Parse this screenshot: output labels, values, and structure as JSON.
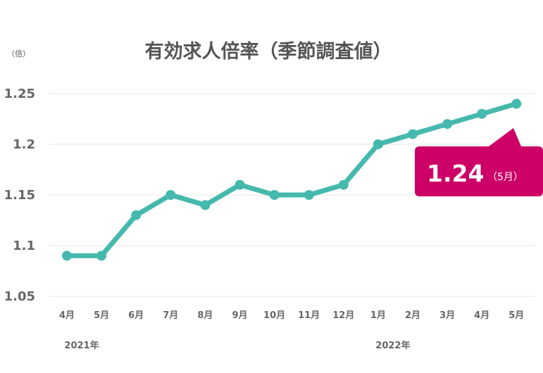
{
  "chart_data": {
    "type": "line",
    "title": "有効求人倍率（季節調査値）",
    "unit_label": "（倍）",
    "categories": [
      "4月",
      "5月",
      "6月",
      "7月",
      "8月",
      "9月",
      "10月",
      "11月",
      "12月",
      "1月",
      "2月",
      "3月",
      "4月",
      "5月"
    ],
    "year_labels": [
      {
        "label": "2021年",
        "category_index": 0
      },
      {
        "label": "2022年",
        "category_index": 9
      }
    ],
    "series": [
      {
        "values": [
          1.09,
          1.09,
          1.13,
          1.15,
          1.14,
          1.16,
          1.15,
          1.15,
          1.16,
          1.2,
          1.21,
          1.22,
          1.23,
          1.24
        ],
        "color": "#46b9ae"
      }
    ],
    "ylim": [
      1.05,
      1.25
    ],
    "yticks": [
      1.05,
      1.1,
      1.15,
      1.2,
      1.25
    ],
    "ytick_labels": [
      "1.05",
      "1.1",
      "1.15",
      "1.2",
      "1.25"
    ],
    "grid": true,
    "callout": {
      "value": "1.24",
      "sub": "（5月）",
      "color": "#cc0066",
      "category_index": 13
    }
  }
}
